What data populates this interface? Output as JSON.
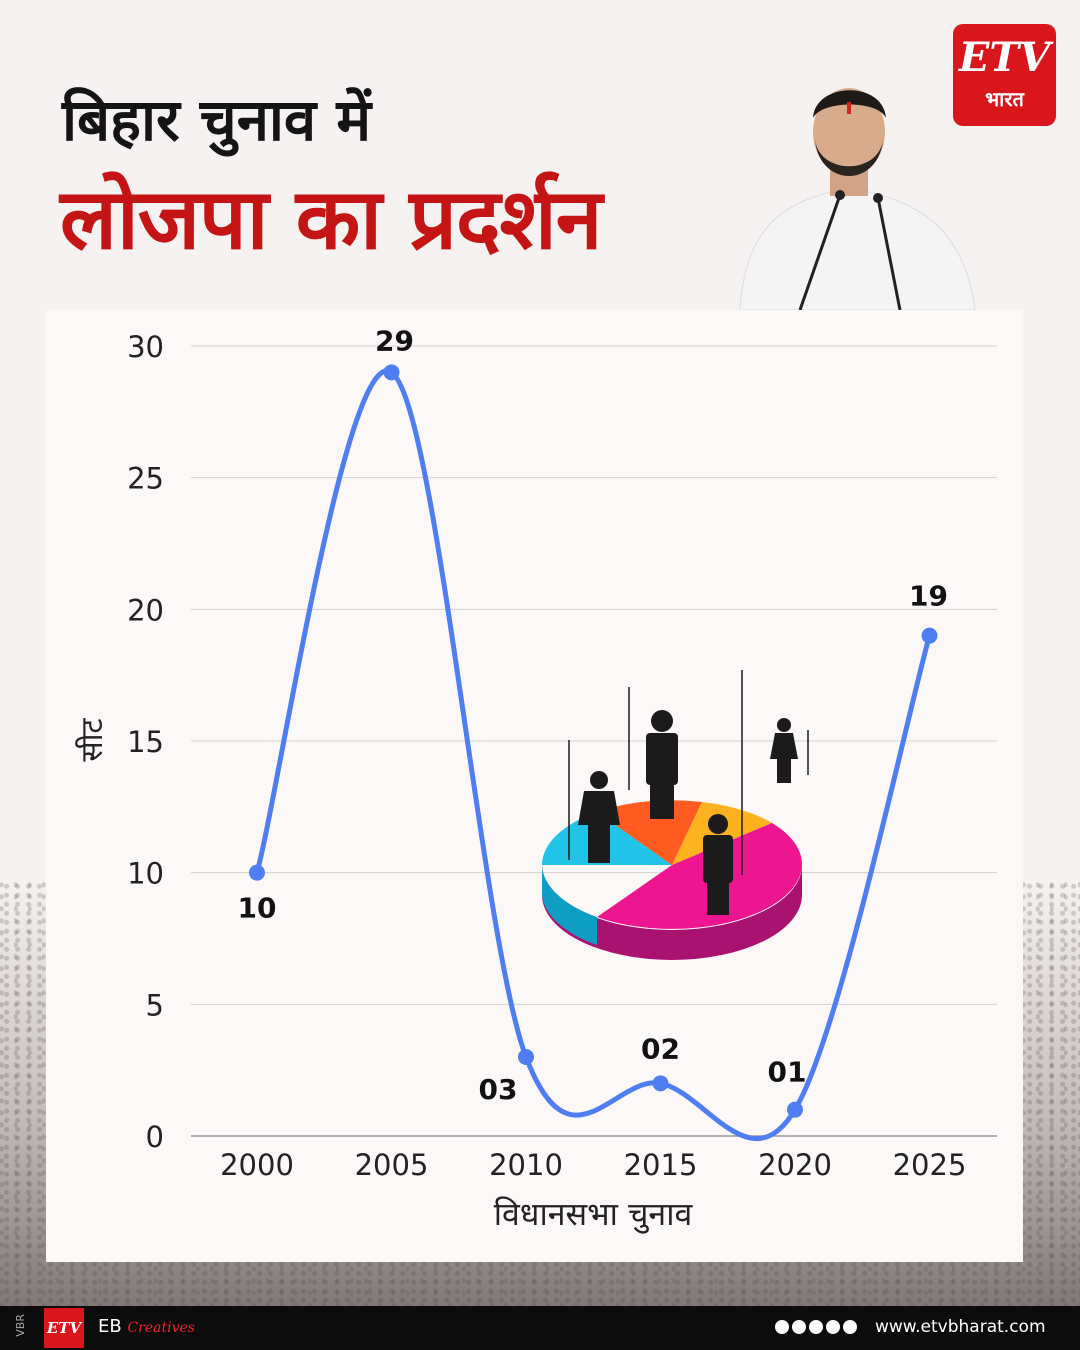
{
  "header": {
    "title_line1": "बिहार चुनाव में",
    "title_line2": "लोजपा का प्रदर्शन",
    "logo_text": "ETV",
    "logo_sub": "भारत"
  },
  "footer": {
    "side_tag": "VBR",
    "brand": "EB",
    "brand_script": "Creatives",
    "website": "www.etvbharat.com"
  },
  "colors": {
    "line": "#4f7ef2",
    "title_red": "#c41414"
  },
  "chart_data": {
    "type": "line",
    "x": [
      "2000",
      "2005",
      "2010",
      "2015",
      "2020",
      "2025"
    ],
    "values": [
      10,
      29,
      3,
      2,
      1,
      19
    ],
    "value_labels": [
      "10",
      "29",
      "03",
      "02",
      "01",
      "19"
    ],
    "xlabel": "विधानसभा चुनाव",
    "ylabel": "सीट",
    "ylim": [
      0,
      30
    ],
    "yticks": [
      0,
      5,
      10,
      15,
      20,
      25,
      30
    ],
    "grid": true,
    "line_style": "smooth"
  }
}
